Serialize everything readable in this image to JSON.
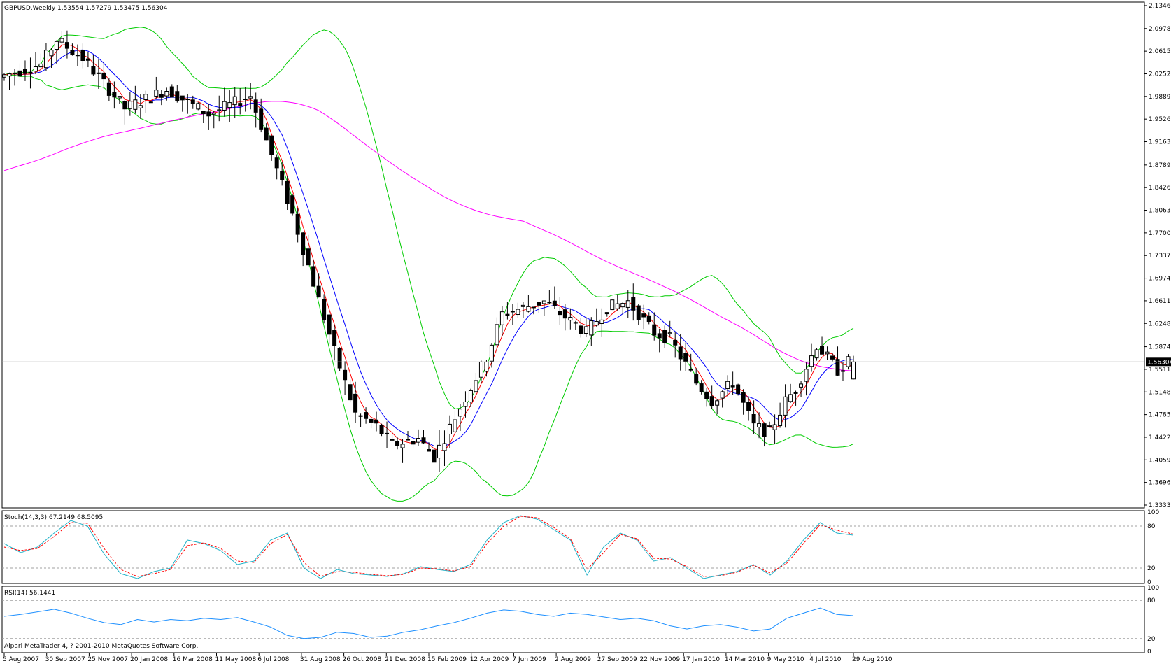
{
  "main_header": "GBPUSD,Weekly  1.53554 1.57279 1.53475 1.56304",
  "stoch_header": "Stoch(14,3,3) 67.2149 68.5095",
  "rsi_header": "RSI(14) 56.1441",
  "copyright": "Alpari MetaTrader 4, ? 2001-2010 MetaQuotes Software Corp.",
  "current_price_label": "1.56304",
  "colors": {
    "background": "#ffffff",
    "bull_candle": "#ffffff",
    "bear_candle": "#000000",
    "bollinger": "#00cc00",
    "ma_fast": "#ff0000",
    "ma_slow": "#0000ff",
    "ma_long": "#ff00ff",
    "stoch_main": "#20b2c8",
    "stoch_signal": "#ff0000",
    "rsi": "#1e90ff",
    "level_lines": "#a0a0a0"
  },
  "chart_data": [
    {
      "type": "candlestick",
      "title": "GBPUSD,Weekly",
      "x_labels": [
        "5 Aug 2007",
        "30 Sep 2007",
        "25 Nov 2007",
        "20 Jan 2008",
        "16 Mar 2008",
        "11 May 2008",
        "6 Jul 2008",
        "31 Aug 2008",
        "26 Oct 2008",
        "21 Dec 2008",
        "15 Feb 2009",
        "12 Apr 2009",
        "7 Jun 2009",
        "2 Aug 2009",
        "27 Sep 2009",
        "22 Nov 2009",
        "17 Jan 2010",
        "14 Mar 2010",
        "9 May 2010",
        "4 Jul 2010",
        "29 Aug 2010"
      ],
      "y_ticks": [
        "2.13464",
        "2.09780",
        "2.06150",
        "2.02520",
        "1.98890",
        "1.95260",
        "1.91630",
        "1.87890",
        "1.84260",
        "1.80630",
        "1.77000",
        "1.73370",
        "1.69740",
        "1.66110",
        "1.62480",
        "1.58740",
        "1.55110",
        "1.51480",
        "1.47850",
        "1.44220",
        "1.40590",
        "1.36960",
        "1.33330"
      ],
      "ylim": [
        1.3333,
        2.1346
      ],
      "current_price": 1.56304,
      "series": [
        {
          "name": "Bollinger Bands",
          "indicator": "bollinger"
        },
        {
          "name": "MA fast",
          "indicator": "ma"
        },
        {
          "name": "MA slow",
          "indicator": "ma"
        },
        {
          "name": "MA long",
          "indicator": "ma"
        }
      ],
      "anchors": [
        {
          "date": "2007-08-05",
          "price": 2.02
        },
        {
          "date": "2007-09-30",
          "price": 2.04
        },
        {
          "date": "2007-10-21",
          "price": 2.08
        },
        {
          "date": "2007-11-25",
          "price": 2.05
        },
        {
          "date": "2008-01-20",
          "price": 1.97
        },
        {
          "date": "2008-03-16",
          "price": 2.0
        },
        {
          "date": "2008-05-11",
          "price": 1.96
        },
        {
          "date": "2008-07-06",
          "price": 1.99
        },
        {
          "date": "2008-08-31",
          "price": 1.8
        },
        {
          "date": "2008-10-26",
          "price": 1.58
        },
        {
          "date": "2008-11-23",
          "price": 1.48
        },
        {
          "date": "2008-12-21",
          "price": 1.46
        },
        {
          "date": "2009-01-11",
          "price": 1.43
        },
        {
          "date": "2009-02-15",
          "price": 1.44
        },
        {
          "date": "2009-03-08",
          "price": 1.41
        },
        {
          "date": "2009-04-12",
          "price": 1.49
        },
        {
          "date": "2009-05-17",
          "price": 1.57
        },
        {
          "date": "2009-06-07",
          "price": 1.64
        },
        {
          "date": "2009-08-02",
          "price": 1.66
        },
        {
          "date": "2009-09-27",
          "price": 1.61
        },
        {
          "date": "2009-10-25",
          "price": 1.65
        },
        {
          "date": "2009-11-22",
          "price": 1.66
        },
        {
          "date": "2009-12-27",
          "price": 1.61
        },
        {
          "date": "2010-01-17",
          "price": 1.6
        },
        {
          "date": "2010-02-21",
          "price": 1.53
        },
        {
          "date": "2010-03-14",
          "price": 1.5
        },
        {
          "date": "2010-04-11",
          "price": 1.53
        },
        {
          "date": "2010-05-09",
          "price": 1.46
        },
        {
          "date": "2010-05-30",
          "price": 1.45
        },
        {
          "date": "2010-06-20",
          "price": 1.5
        },
        {
          "date": "2010-07-04",
          "price": 1.52
        },
        {
          "date": "2010-08-01",
          "price": 1.59
        },
        {
          "date": "2010-08-29",
          "price": 1.55
        },
        {
          "date": "2010-09-12",
          "price": 1.563
        }
      ]
    },
    {
      "type": "line",
      "title": "Stoch(14,3,3) 67.2149 68.5095",
      "ylim": [
        0,
        100
      ],
      "y_ticks": [
        "100",
        "80",
        "20",
        "0"
      ],
      "levels": [
        80,
        20
      ],
      "series": [
        {
          "name": "Stoch main",
          "values": [
            55,
            42,
            50,
            70,
            88,
            80,
            40,
            12,
            5,
            15,
            20,
            60,
            55,
            45,
            25,
            30,
            60,
            70,
            20,
            5,
            18,
            12,
            10,
            8,
            12,
            22,
            18,
            15,
            25,
            60,
            85,
            95,
            90,
            75,
            60,
            10,
            50,
            70,
            60,
            30,
            35,
            20,
            5,
            10,
            15,
            25,
            10,
            30,
            60,
            85,
            70,
            67
          ]
        },
        {
          "name": "Stoch signal",
          "values": [
            50,
            45,
            48,
            65,
            85,
            84,
            48,
            18,
            8,
            12,
            18,
            52,
            56,
            48,
            30,
            28,
            55,
            68,
            28,
            8,
            15,
            14,
            11,
            9,
            11,
            20,
            19,
            16,
            22,
            55,
            80,
            94,
            92,
            78,
            62,
            18,
            42,
            68,
            62,
            34,
            33,
            22,
            8,
            9,
            14,
            24,
            13,
            27,
            55,
            82,
            74,
            68.5
          ]
        }
      ]
    },
    {
      "type": "line",
      "title": "RSI(14) 56.1441",
      "ylim": [
        0,
        100
      ],
      "y_ticks": [
        "100",
        "80",
        "20",
        "0"
      ],
      "levels": [
        80,
        20
      ],
      "series": [
        {
          "name": "RSI",
          "values": [
            55,
            58,
            62,
            66,
            60,
            52,
            45,
            42,
            50,
            46,
            50,
            48,
            52,
            50,
            53,
            46,
            38,
            25,
            20,
            22,
            30,
            28,
            22,
            24,
            30,
            34,
            40,
            45,
            52,
            60,
            65,
            63,
            58,
            55,
            60,
            58,
            54,
            50,
            52,
            48,
            40,
            35,
            40,
            42,
            38,
            32,
            35,
            52,
            60,
            68,
            58,
            56
          ]
        }
      ]
    }
  ]
}
